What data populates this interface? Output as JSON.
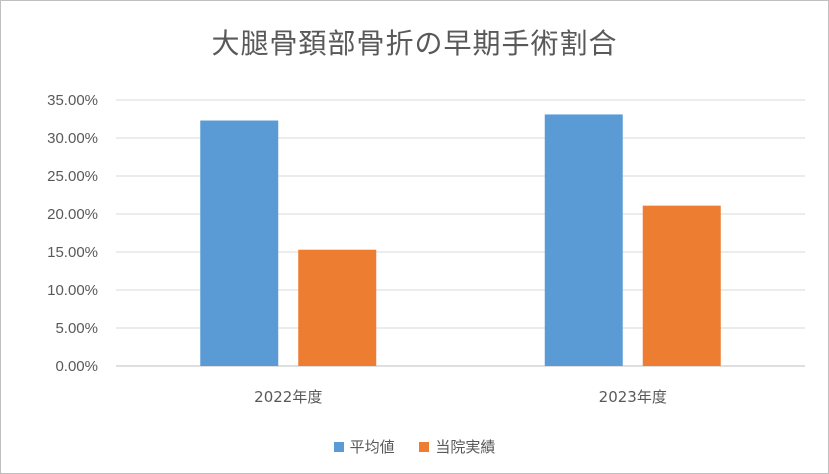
{
  "chart_data": {
    "type": "bar",
    "title": "大腿骨頚部骨折の早期手術割合",
    "categories": [
      "2022年度",
      "2023年度"
    ],
    "series": [
      {
        "name": "平均値",
        "values": [
          32.3,
          33.1
        ],
        "color": "#5b9bd5"
      },
      {
        "name": "当院実績",
        "values": [
          15.3,
          21.1
        ],
        "color": "#ed7d31"
      }
    ],
    "y_ticks": [
      "0.00%",
      "5.00%",
      "10.00%",
      "15.00%",
      "20.00%",
      "25.00%",
      "30.00%",
      "35.00%"
    ],
    "ylim": [
      0,
      35
    ],
    "grid": true,
    "legend_position": "bottom"
  }
}
